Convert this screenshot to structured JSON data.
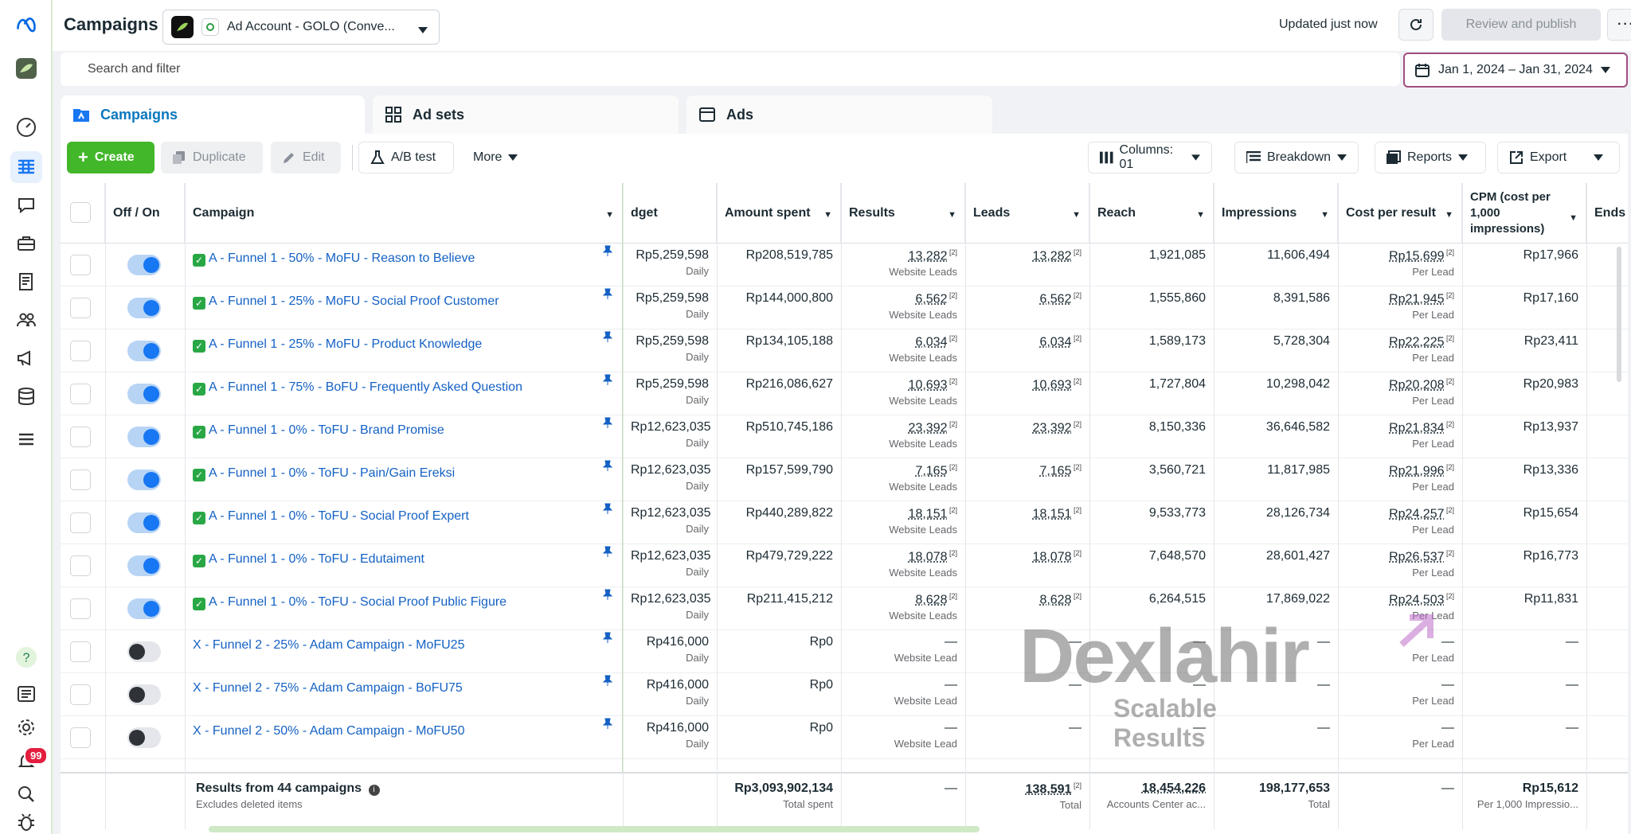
{
  "header": {
    "title": "Campaigns",
    "account_name": "Ad Account - GOLO (Conve...",
    "updated": "Updated just now",
    "publish_label": "Review and publish",
    "more_label": "···"
  },
  "search": {
    "placeholder": "Search and filter"
  },
  "date_range": "Jan 1, 2024 – Jan 31, 2024",
  "tabs": [
    {
      "label": "Campaigns"
    },
    {
      "label": "Ad sets"
    },
    {
      "label": "Ads"
    }
  ],
  "toolbar": {
    "create": "Create",
    "duplicate": "Duplicate",
    "edit": "Edit",
    "ab_test": "A/B test",
    "more": "More",
    "columns": "Columns: 01",
    "breakdown": "Breakdown",
    "reports": "Reports",
    "export": "Export"
  },
  "columns": {
    "offon": "Off / On",
    "campaign": "Campaign",
    "budget": "dget",
    "amount": "Amount spent",
    "results": "Results",
    "leads": "Leads",
    "reach": "Reach",
    "impressions": "Impressions",
    "cpr": "Cost per result",
    "cpm": "CPM (cost per 1,000 impressions)",
    "ends": "Ends"
  },
  "rows": [
    {
      "name": "A - Funnel 1 - 50% - MoFU - Reason to Believe",
      "on": true,
      "budget": "Rp5,259,598",
      "period": "Daily",
      "amount": "Rp208,519,785",
      "results": "13,282",
      "results_type": "Website Leads",
      "leads": "13,282",
      "reach": "1,921,085",
      "impressions": "11,606,494",
      "cpr": "Rp15,699",
      "cpr_type": "Per Lead",
      "cpm": "Rp17,966"
    },
    {
      "name": "A - Funnel 1 - 25% - MoFU - Social Proof Customer",
      "on": true,
      "budget": "Rp5,259,598",
      "period": "Daily",
      "amount": "Rp144,000,800",
      "results": "6,562",
      "results_type": "Website Leads",
      "leads": "6,562",
      "reach": "1,555,860",
      "impressions": "8,391,586",
      "cpr": "Rp21,945",
      "cpr_type": "Per Lead",
      "cpm": "Rp17,160"
    },
    {
      "name": "A - Funnel 1 - 25% - MoFU - Product Knowledge",
      "on": true,
      "budget": "Rp5,259,598",
      "period": "Daily",
      "amount": "Rp134,105,188",
      "results": "6,034",
      "results_type": "Website Leads",
      "leads": "6,034",
      "reach": "1,589,173",
      "impressions": "5,728,304",
      "cpr": "Rp22,225",
      "cpr_type": "Per Lead",
      "cpm": "Rp23,411"
    },
    {
      "name": "A - Funnel 1 - 75% - BoFU - Frequently Asked Question",
      "on": true,
      "budget": "Rp5,259,598",
      "period": "Daily",
      "amount": "Rp216,086,627",
      "results": "10,693",
      "results_type": "Website Leads",
      "leads": "10,693",
      "reach": "1,727,804",
      "impressions": "10,298,042",
      "cpr": "Rp20,208",
      "cpr_type": "Per Lead",
      "cpm": "Rp20,983"
    },
    {
      "name": "A - Funnel 1 - 0% - ToFU - Brand Promise",
      "on": true,
      "budget": "Rp12,623,035",
      "period": "Daily",
      "amount": "Rp510,745,186",
      "results": "23,392",
      "results_type": "Website Leads",
      "leads": "23,392",
      "reach": "8,150,336",
      "impressions": "36,646,582",
      "cpr": "Rp21,834",
      "cpr_type": "Per Lead",
      "cpm": "Rp13,937"
    },
    {
      "name": "A - Funnel 1 - 0% - ToFU - Pain/Gain Ereksi",
      "on": true,
      "budget": "Rp12,623,035",
      "period": "Daily",
      "amount": "Rp157,599,790",
      "results": "7,165",
      "results_type": "Website Leads",
      "leads": "7,165",
      "reach": "3,560,721",
      "impressions": "11,817,985",
      "cpr": "Rp21,996",
      "cpr_type": "Per Lead",
      "cpm": "Rp13,336"
    },
    {
      "name": "A - Funnel 1 - 0% - ToFU - Social Proof Expert",
      "on": true,
      "budget": "Rp12,623,035",
      "period": "Daily",
      "amount": "Rp440,289,822",
      "results": "18,151",
      "results_type": "Website Leads",
      "leads": "18,151",
      "reach": "9,533,773",
      "impressions": "28,126,734",
      "cpr": "Rp24,257",
      "cpr_type": "Per Lead",
      "cpm": "Rp15,654"
    },
    {
      "name": "A - Funnel 1 - 0% - ToFU - Edutaiment",
      "on": true,
      "budget": "Rp12,623,035",
      "period": "Daily",
      "amount": "Rp479,729,222",
      "results": "18,078",
      "results_type": "Website Leads",
      "leads": "18,078",
      "reach": "7,648,570",
      "impressions": "28,601,427",
      "cpr": "Rp26,537",
      "cpr_type": "Per Lead",
      "cpm": "Rp16,773"
    },
    {
      "name": "A - Funnel 1 - 0% - ToFU - Social Proof Public Figure",
      "on": true,
      "budget": "Rp12,623,035",
      "period": "Daily",
      "amount": "Rp211,415,212",
      "results": "8,628",
      "results_type": "Website Leads",
      "leads": "8,628",
      "reach": "6,264,515",
      "impressions": "17,869,022",
      "cpr": "Rp24,503",
      "cpr_type": "Per Lead",
      "cpm": "Rp11,831"
    },
    {
      "name": "X - Funnel 2 - 25% - Adam Campaign - MoFU25",
      "on": false,
      "budget": "Rp416,000",
      "period": "Daily",
      "amount": "Rp0",
      "results": "—",
      "results_type": "Website Lead",
      "leads": "—",
      "reach": "—",
      "impressions": "—",
      "cpr": "—",
      "cpr_type": "Per Lead",
      "cpm": "—"
    },
    {
      "name": "X - Funnel 2 - 75% - Adam Campaign - BoFU75",
      "on": false,
      "budget": "Rp416,000",
      "period": "Daily",
      "amount": "Rp0",
      "results": "—",
      "results_type": "Website Lead",
      "leads": "—",
      "reach": "—",
      "impressions": "—",
      "cpr": "—",
      "cpr_type": "Per Lead",
      "cpm": "—"
    },
    {
      "name": "X - Funnel 2 - 50% - Adam Campaign - MoFU50",
      "on": false,
      "budget": "Rp416,000",
      "period": "Daily",
      "amount": "Rp0",
      "results": "—",
      "results_type": "Website Lead",
      "leads": "—",
      "reach": "—",
      "impressions": "—",
      "cpr": "—",
      "cpr_type": "Per Lead",
      "cpm": "—"
    }
  ],
  "footer": {
    "title": "Results from 44 campaigns",
    "subtitle": "Excludes deleted items",
    "amount": "Rp3,093,902,134",
    "amount_label": "Total spent",
    "results": "—",
    "leads": "138,591",
    "leads_label": "Total",
    "reach": "18,454,226",
    "reach_label": "Accounts Center ac...",
    "impressions": "198,177,653",
    "impressions_label": "Total",
    "cpr": "—",
    "cpm": "Rp15,612",
    "cpm_label": "Per 1,000 Impressio..."
  },
  "notifications_count": "99",
  "watermark": {
    "brand": "Dexlahir",
    "tagline": "Scalable Results"
  },
  "colors": {
    "accent": "#1877f2",
    "create": "#42b72a",
    "link": "#1461c4"
  }
}
